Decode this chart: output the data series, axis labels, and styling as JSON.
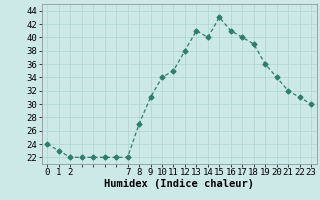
{
  "x": [
    0,
    1,
    2,
    3,
    4,
    5,
    6,
    7,
    8,
    9,
    10,
    11,
    12,
    13,
    14,
    15,
    16,
    17,
    18,
    19,
    20,
    21,
    22,
    23
  ],
  "y": [
    24,
    23,
    22,
    22,
    22,
    22,
    22,
    22,
    27,
    31,
    34,
    35,
    38,
    41,
    40,
    43,
    41,
    40,
    39,
    36,
    34,
    32,
    31,
    30
  ],
  "xtick_labels": [
    "0",
    "1",
    "2",
    "",
    "",
    "",
    "",
    "7",
    "8",
    "9",
    "10",
    "11",
    "12",
    "13",
    "14",
    "15",
    "16",
    "17",
    "18",
    "19",
    "20",
    "21",
    "22",
    "23"
  ],
  "xlabel": "Humidex (Indice chaleur)",
  "ylim": [
    21,
    45
  ],
  "yticks": [
    22,
    24,
    26,
    28,
    30,
    32,
    34,
    36,
    38,
    40,
    42,
    44
  ],
  "line_color": "#2e7d6e",
  "marker": "D",
  "marker_size": 2.5,
  "bg_color": "#cce9e8",
  "grid_color": "#aed4d2",
  "xlabel_fontsize": 7.5,
  "tick_fontsize": 6.5
}
